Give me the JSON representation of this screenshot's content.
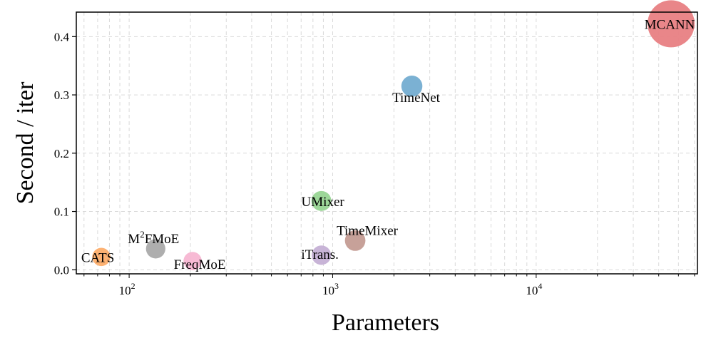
{
  "chart_data": {
    "type": "scatter",
    "title": "",
    "xlabel": "Parameters",
    "ylabel": "Second / iter",
    "xscale": "log",
    "xlim": [
      55,
      62000
    ],
    "ylim": [
      -0.007,
      0.442
    ],
    "grid": true,
    "x_tick_labels": [
      {
        "base": "10",
        "exp": "2"
      },
      {
        "base": "10",
        "exp": "3"
      },
      {
        "base": "10",
        "exp": "4"
      }
    ],
    "y_ticks": [
      0.0,
      0.1,
      0.2,
      0.3,
      0.4
    ],
    "y_tick_labels": [
      "0.0",
      "0.1",
      "0.2",
      "0.3",
      "0.4"
    ],
    "points": [
      {
        "label": "CATS",
        "x": 73,
        "y": 0.022,
        "size": 0.15,
        "color": "#fdae6b"
      },
      {
        "label": "M",
        "label_sup": "2",
        "label_rest": "FMoE",
        "x": 135,
        "y": 0.036,
        "size": 0.17,
        "color": "#aaaaaa"
      },
      {
        "label": "FreqMoE",
        "x": 205,
        "y": 0.015,
        "size": 0.15,
        "color": "#f7b6d2"
      },
      {
        "label": "UMixer",
        "x": 880,
        "y": 0.118,
        "size": 0.18,
        "color": "#98d594"
      },
      {
        "label": "iTrans.",
        "x": 880,
        "y": 0.025,
        "size": 0.17,
        "color": "#c5b0d5"
      },
      {
        "label": "TimeMixer",
        "x": 1290,
        "y": 0.05,
        "size": 0.19,
        "color": "#c49c94"
      },
      {
        "label": "TimeNet",
        "x": 2450,
        "y": 0.315,
        "size": 0.2,
        "color": "#74add1"
      },
      {
        "label": "MCANN",
        "x": 46000,
        "y": 0.422,
        "size": 1.0,
        "color": "#e88083"
      }
    ]
  }
}
